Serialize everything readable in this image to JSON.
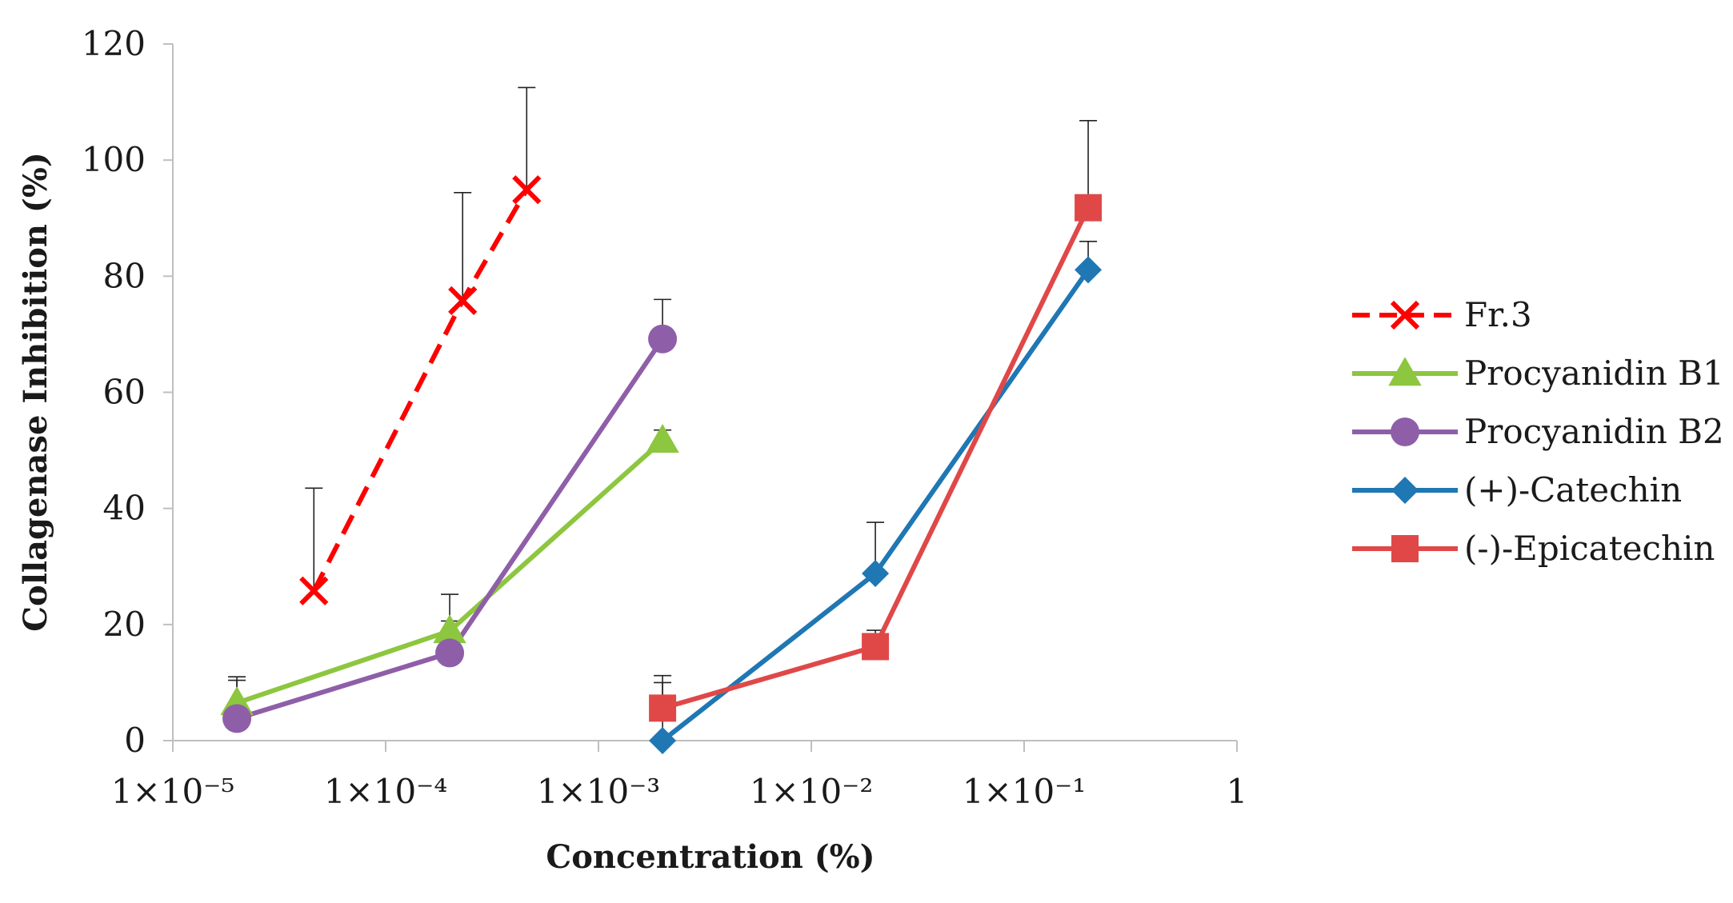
{
  "chart_data": {
    "type": "line",
    "xscale": "log",
    "xlim": [
      1e-05,
      1
    ],
    "ylim": [
      0,
      120
    ],
    "grid": false,
    "legend_position": "right",
    "xlabel": "Concentration (%)",
    "ylabel": "Collagenase Inhibition (%)",
    "x_ticks": [
      {
        "value": 1e-05,
        "label": "1×10⁻⁵"
      },
      {
        "value": 0.0001,
        "label": "1×10⁻⁴"
      },
      {
        "value": 0.001,
        "label": "1×10⁻³"
      },
      {
        "value": 0.01,
        "label": "1×10⁻²"
      },
      {
        "value": 0.1,
        "label": "1×10⁻¹"
      },
      {
        "value": 1,
        "label": "1"
      }
    ],
    "y_ticks": [
      {
        "value": 0,
        "label": "0"
      },
      {
        "value": 20,
        "label": "20"
      },
      {
        "value": 40,
        "label": "40"
      },
      {
        "value": 60,
        "label": "60"
      },
      {
        "value": 80,
        "label": "80"
      },
      {
        "value": 100,
        "label": "100"
      },
      {
        "value": 120,
        "label": "120"
      }
    ],
    "series": [
      {
        "name": "Fr.3",
        "color": "#ff0000",
        "marker": "x",
        "dashed": true,
        "x": [
          4.6e-05,
          0.00023,
          0.00046
        ],
        "y": [
          25.8,
          75.8,
          94.9
        ],
        "error": [
          17.7,
          18.6,
          17.6
        ]
      },
      {
        "name": "Procyanidin B1",
        "color": "#8dc63f",
        "marker": "triangle",
        "dashed": false,
        "x": [
          2e-05,
          0.0002,
          0.002
        ],
        "y": [
          6.5,
          18.9,
          51.7
        ],
        "error": [
          4.5,
          6.3,
          1.8
        ]
      },
      {
        "name": "Procyanidin B2",
        "color": "#8e5fa8",
        "marker": "circle",
        "dashed": false,
        "x": [
          2e-05,
          0.0002,
          0.002
        ],
        "y": [
          3.8,
          15.1,
          69.2
        ],
        "error": [
          6.6,
          5.5,
          6.8
        ]
      },
      {
        "name": "(+)-Catechin",
        "color": "#1f77b4",
        "marker": "diamond",
        "dashed": false,
        "x": [
          0.002,
          0.02,
          0.2
        ],
        "y": [
          0.0,
          28.8,
          81.1
        ],
        "error": [
          10.0,
          8.8,
          4.9
        ]
      },
      {
        "name": "(-)-Epicatechin",
        "color": "#e04848",
        "marker": "square",
        "dashed": false,
        "x": [
          0.002,
          0.02,
          0.2
        ],
        "y": [
          5.6,
          16.2,
          91.8
        ],
        "error": [
          5.6,
          2.8,
          15.0
        ]
      }
    ]
  }
}
